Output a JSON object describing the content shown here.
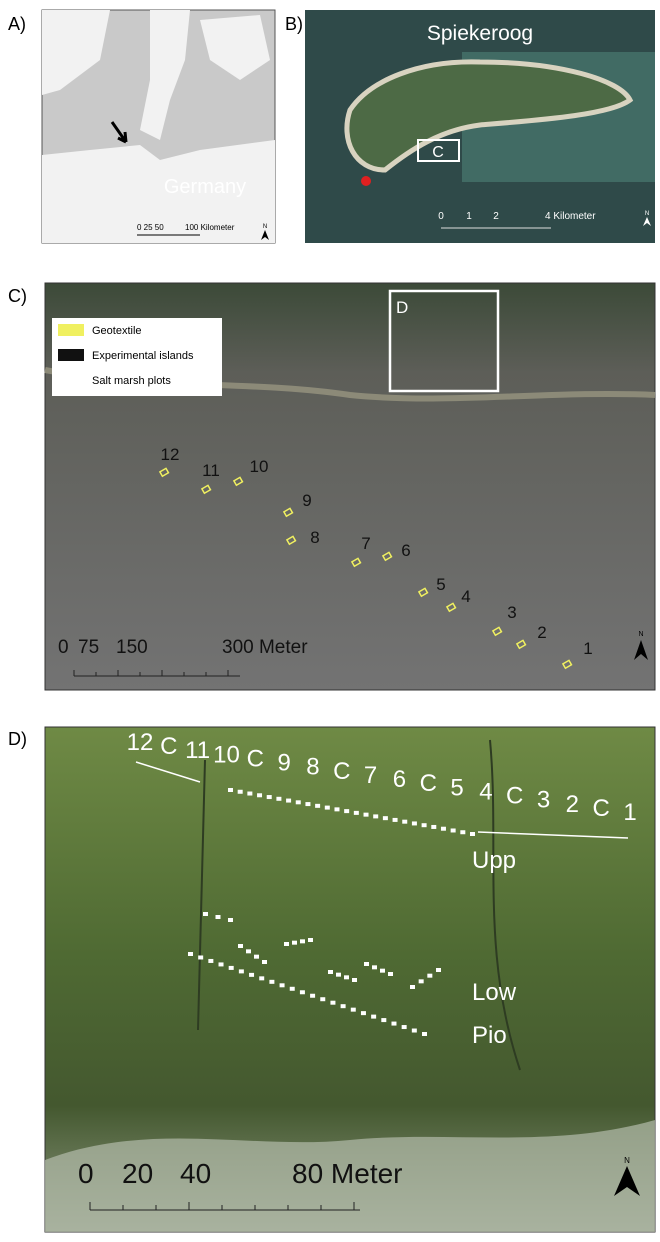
{
  "panels": {
    "a": {
      "label": "A)",
      "country": "Germany",
      "scale": [
        "0 25 50",
        "100 Kilometer"
      ],
      "north": "N"
    },
    "b": {
      "label": "B)",
      "island": "Spiekeroog",
      "box": "C",
      "scale": [
        "0",
        "1",
        "2",
        "4 Kilometer"
      ],
      "north": "N"
    },
    "c": {
      "label": "C)",
      "legend": [
        "Geotextile",
        "Experimental islands",
        "Salt marsh plots"
      ],
      "box": "D",
      "plots": [
        "12",
        "11",
        "10",
        "9",
        "8",
        "7",
        "6",
        "5",
        "4",
        "3",
        "2",
        "1"
      ],
      "scale": [
        "0",
        "75",
        "150",
        "300 Meter"
      ],
      "north": "N"
    },
    "d": {
      "label": "D)",
      "plots": [
        "12",
        "C",
        "11",
        "10",
        "C",
        "9",
        "8",
        "C",
        "7",
        "6",
        "C",
        "5",
        "4",
        "C",
        "3",
        "2",
        "C",
        "1"
      ],
      "zones": [
        "Upp",
        "Low",
        "Pio"
      ],
      "scale": [
        "0",
        "20",
        "40",
        "80 Meter"
      ],
      "north": "N"
    }
  }
}
